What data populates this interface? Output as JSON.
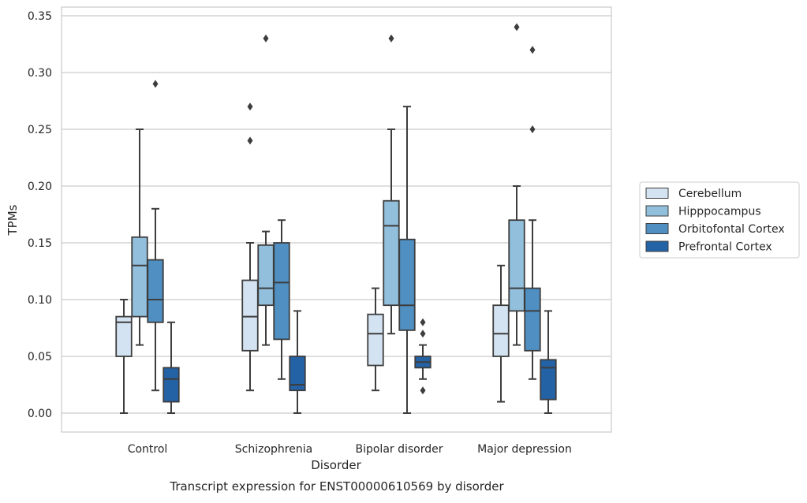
{
  "chart_data": {
    "type": "box",
    "title": "",
    "xlabel": "Disorder",
    "ylabel": "TPMs",
    "caption": "Transcript expression for ENST00000610569 by disorder",
    "ylim": [
      -0.016,
      0.358
    ],
    "yticks": [
      0.0,
      0.05,
      0.1,
      0.15,
      0.2,
      0.25,
      0.3,
      0.35
    ],
    "ytick_labels": [
      "0.00",
      "0.05",
      "0.10",
      "0.15",
      "0.20",
      "0.25",
      "0.30",
      "0.35"
    ],
    "grid": "horizontal",
    "legend_position": "right",
    "categories": [
      "Control",
      "Schizophrenia",
      "Bipolar disorder",
      "Major depression"
    ],
    "series": [
      {
        "name": "Cerebellum",
        "color": "#d4e3f2",
        "boxes": [
          {
            "whisker_low": 0.0,
            "q1": 0.05,
            "median": 0.08,
            "q3": 0.085,
            "whisker_high": 0.1,
            "outliers": []
          },
          {
            "whisker_low": 0.02,
            "q1": 0.055,
            "median": 0.085,
            "q3": 0.117,
            "whisker_high": 0.15,
            "outliers": [
              0.24,
              0.27
            ]
          },
          {
            "whisker_low": 0.02,
            "q1": 0.042,
            "median": 0.07,
            "q3": 0.087,
            "whisker_high": 0.11,
            "outliers": []
          },
          {
            "whisker_low": 0.01,
            "q1": 0.05,
            "median": 0.07,
            "q3": 0.095,
            "whisker_high": 0.13,
            "outliers": []
          }
        ]
      },
      {
        "name": "Hipppocampus",
        "color": "#92bfdc",
        "boxes": [
          {
            "whisker_low": 0.06,
            "q1": 0.085,
            "median": 0.13,
            "q3": 0.155,
            "whisker_high": 0.25,
            "outliers": []
          },
          {
            "whisker_low": 0.06,
            "q1": 0.095,
            "median": 0.11,
            "q3": 0.148,
            "whisker_high": 0.16,
            "outliers": [
              0.33
            ]
          },
          {
            "whisker_low": 0.07,
            "q1": 0.095,
            "median": 0.165,
            "q3": 0.187,
            "whisker_high": 0.25,
            "outliers": [
              0.33
            ]
          },
          {
            "whisker_low": 0.06,
            "q1": 0.09,
            "median": 0.11,
            "q3": 0.17,
            "whisker_high": 0.2,
            "outliers": [
              0.34
            ]
          }
        ]
      },
      {
        "name": "Orbitofontal Cortex",
        "color": "#4f8fc2",
        "boxes": [
          {
            "whisker_low": 0.02,
            "q1": 0.08,
            "median": 0.1,
            "q3": 0.135,
            "whisker_high": 0.18,
            "outliers": [
              0.29
            ]
          },
          {
            "whisker_low": 0.03,
            "q1": 0.065,
            "median": 0.115,
            "q3": 0.15,
            "whisker_high": 0.17,
            "outliers": []
          },
          {
            "whisker_low": 0.0,
            "q1": 0.073,
            "median": 0.095,
            "q3": 0.153,
            "whisker_high": 0.27,
            "outliers": []
          },
          {
            "whisker_low": 0.03,
            "q1": 0.055,
            "median": 0.09,
            "q3": 0.11,
            "whisker_high": 0.17,
            "outliers": [
              0.25,
              0.32
            ]
          }
        ]
      },
      {
        "name": "Prefrontal Cortex",
        "color": "#2462a6",
        "boxes": [
          {
            "whisker_low": 0.0,
            "q1": 0.01,
            "median": 0.03,
            "q3": 0.04,
            "whisker_high": 0.08,
            "outliers": []
          },
          {
            "whisker_low": 0.0,
            "q1": 0.02,
            "median": 0.025,
            "q3": 0.05,
            "whisker_high": 0.09,
            "outliers": []
          },
          {
            "whisker_low": 0.03,
            "q1": 0.04,
            "median": 0.045,
            "q3": 0.05,
            "whisker_high": 0.06,
            "outliers": [
              0.02,
              0.07,
              0.08
            ]
          },
          {
            "whisker_low": 0.0,
            "q1": 0.012,
            "median": 0.04,
            "q3": 0.047,
            "whisker_high": 0.09,
            "outliers": []
          }
        ]
      }
    ]
  }
}
